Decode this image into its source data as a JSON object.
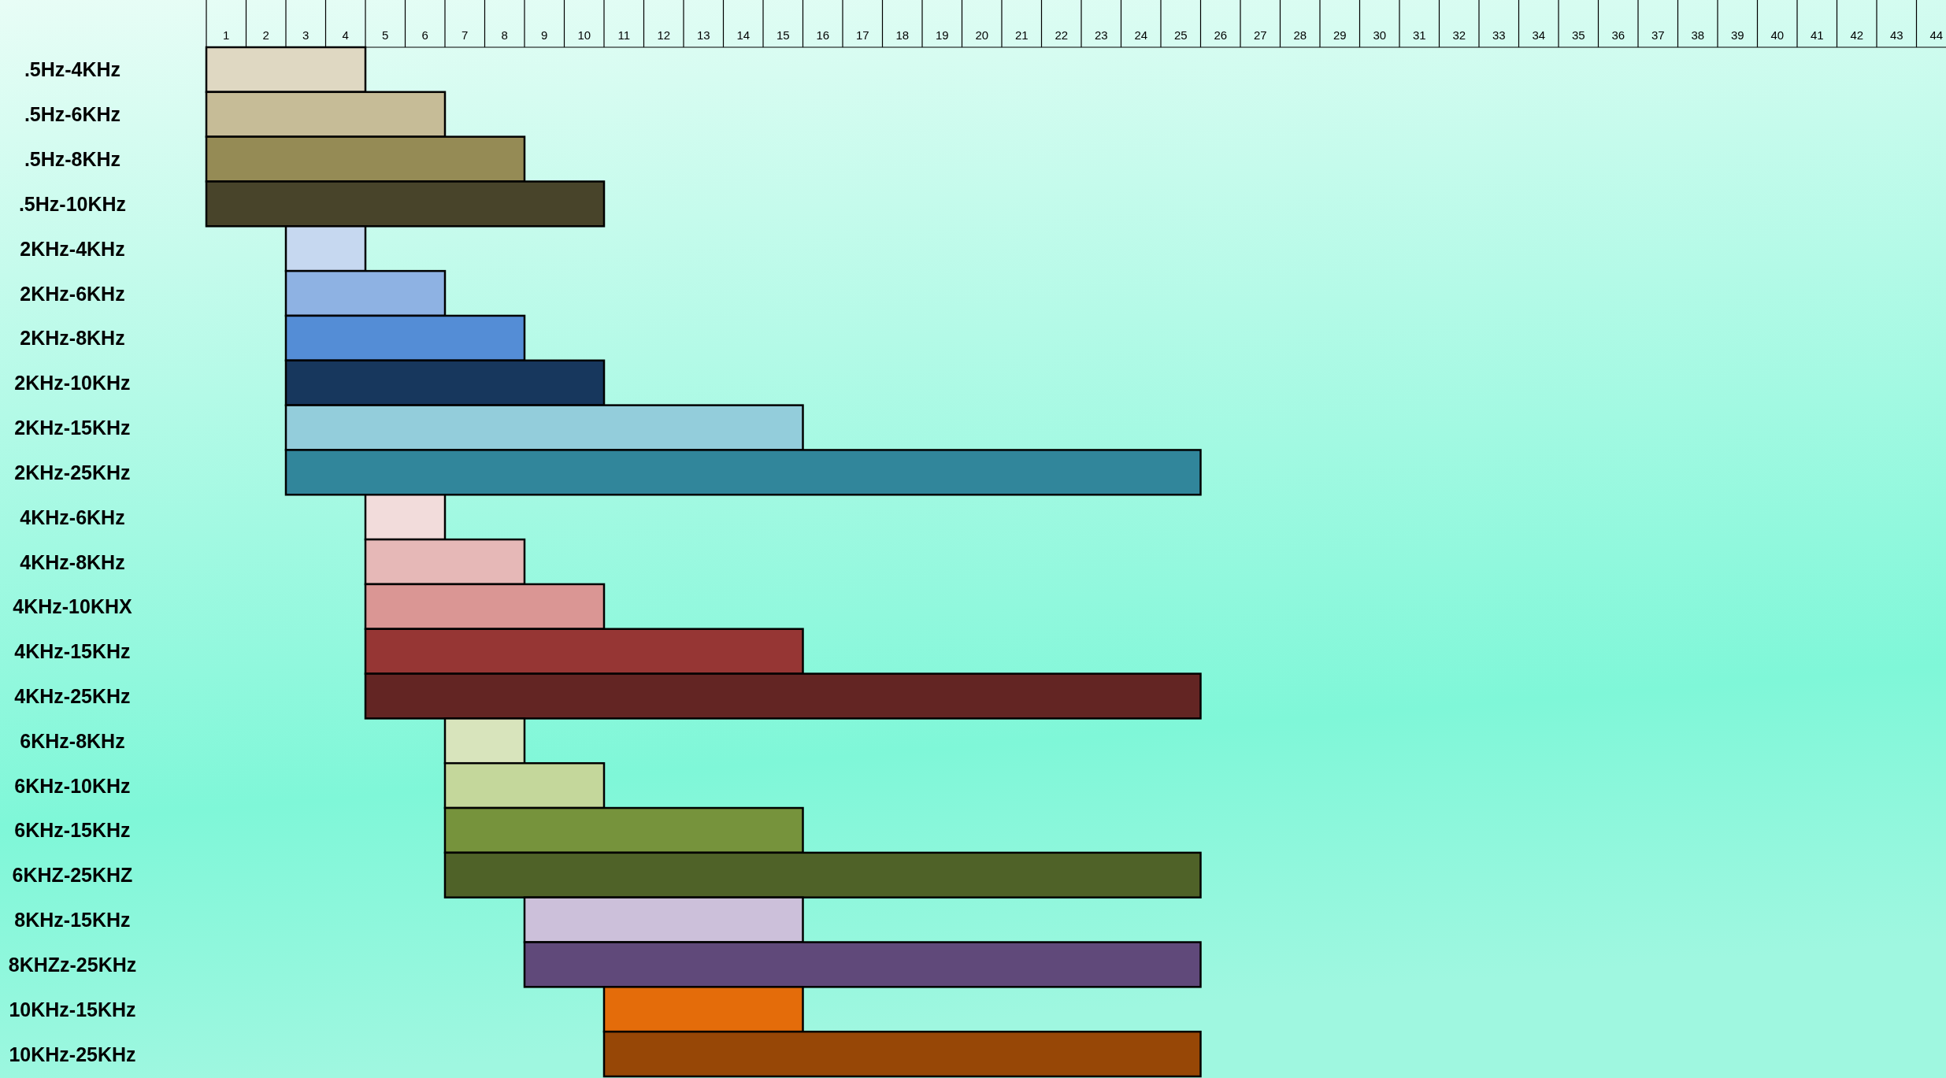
{
  "chart_data": {
    "type": "bar",
    "orientation": "horizontal",
    "categories": [
      ".5Hz-4KHz",
      ".5Hz-6KHz",
      ".5Hz-8KHz",
      ".5Hz-10KHz",
      "2KHz-4KHz",
      "2KHz-6KHz",
      "2KHz-8KHz",
      "2KHz-10KHz",
      "2KHz-15KHz",
      "2KHz-25KHz",
      "4KHz-6KHz",
      "4KHz-8KHz",
      "4KHz-10KHX",
      "4KHz-15KHz",
      "4KHz-25KHz",
      "6KHz-8KHz",
      "6KHz-10KHz",
      "6KHz-15KHz",
      "6KHZ-25KHZ",
      "8KHz-15KHz",
      "8KHZz-25KHz",
      "10KHz-15KHz",
      "10KHz-25KHz"
    ],
    "base": [
      0,
      0,
      0,
      0,
      2,
      2,
      2,
      2,
      2,
      2,
      4,
      4,
      4,
      4,
      4,
      6,
      6,
      6,
      6,
      8,
      8,
      10,
      10
    ],
    "values": [
      4,
      6,
      8,
      10,
      2,
      4,
      6,
      8,
      13,
      23,
      2,
      4,
      6,
      11,
      21,
      2,
      4,
      9,
      19,
      7,
      17,
      5,
      15
    ],
    "colors": [
      "#dfd8c2",
      "#c6bc97",
      "#958b55",
      "#48442a",
      "#c6d8f0",
      "#8eb2e3",
      "#548dd6",
      "#17375d",
      "#93cddb",
      "#31869b",
      "#f2dcdb",
      "#e6b8b7",
      "#da9694",
      "#963634",
      "#632523",
      "#d8e4bc",
      "#c4d79b",
      "#76933c",
      "#4f6228",
      "#ccc0da",
      "#60497a",
      "#e46c0a",
      "#974706"
    ],
    "xlim": [
      0,
      44
    ],
    "xticks": [
      {
        "value": 0.5,
        "label": "1"
      },
      {
        "value": 1.5,
        "label": "2"
      },
      {
        "value": 2.5,
        "label": "3"
      },
      {
        "value": 3.5,
        "label": "4"
      },
      {
        "value": 4.5,
        "label": "5"
      },
      {
        "value": 5.5,
        "label": "6"
      },
      {
        "value": 6.5,
        "label": "7"
      },
      {
        "value": 7.5,
        "label": "8"
      },
      {
        "value": 8.5,
        "label": "9"
      },
      {
        "value": 9.5,
        "label": "10"
      },
      {
        "value": 10.5,
        "label": "11"
      },
      {
        "value": 11.5,
        "label": "12"
      },
      {
        "value": 12.5,
        "label": "13"
      },
      {
        "value": 13.5,
        "label": "14"
      },
      {
        "value": 14.5,
        "label": "15"
      },
      {
        "value": 15.5,
        "label": "16"
      },
      {
        "value": 16.5,
        "label": "17"
      },
      {
        "value": 17.5,
        "label": "18"
      },
      {
        "value": 18.5,
        "label": "19"
      },
      {
        "value": 19.5,
        "label": "20"
      },
      {
        "value": 20.5,
        "label": "21"
      },
      {
        "value": 21.5,
        "label": "22"
      },
      {
        "value": 22.5,
        "label": "23"
      },
      {
        "value": 23.5,
        "label": "24"
      },
      {
        "value": 24.5,
        "label": "25"
      },
      {
        "value": 25.5,
        "label": "26"
      },
      {
        "value": 26.5,
        "label": "27"
      },
      {
        "value": 27.5,
        "label": "28"
      },
      {
        "value": 28.5,
        "label": "29"
      },
      {
        "value": 29.5,
        "label": "30"
      },
      {
        "value": 30.5,
        "label": "31"
      },
      {
        "value": 31.5,
        "label": "32"
      },
      {
        "value": 32.5,
        "label": "33"
      },
      {
        "value": 33.5,
        "label": "34"
      },
      {
        "value": 34.5,
        "label": "35"
      },
      {
        "value": 35.5,
        "label": "36"
      },
      {
        "value": 36.5,
        "label": "37"
      },
      {
        "value": 37.5,
        "label": "38"
      },
      {
        "value": 38.5,
        "label": "39"
      },
      {
        "value": 39.5,
        "label": "40"
      },
      {
        "value": 40.5,
        "label": "41"
      },
      {
        "value": 41.5,
        "label": "42"
      },
      {
        "value": 42.5,
        "label": "43"
      },
      {
        "value": 43.5,
        "label": "44"
      }
    ],
    "grid": false
  }
}
